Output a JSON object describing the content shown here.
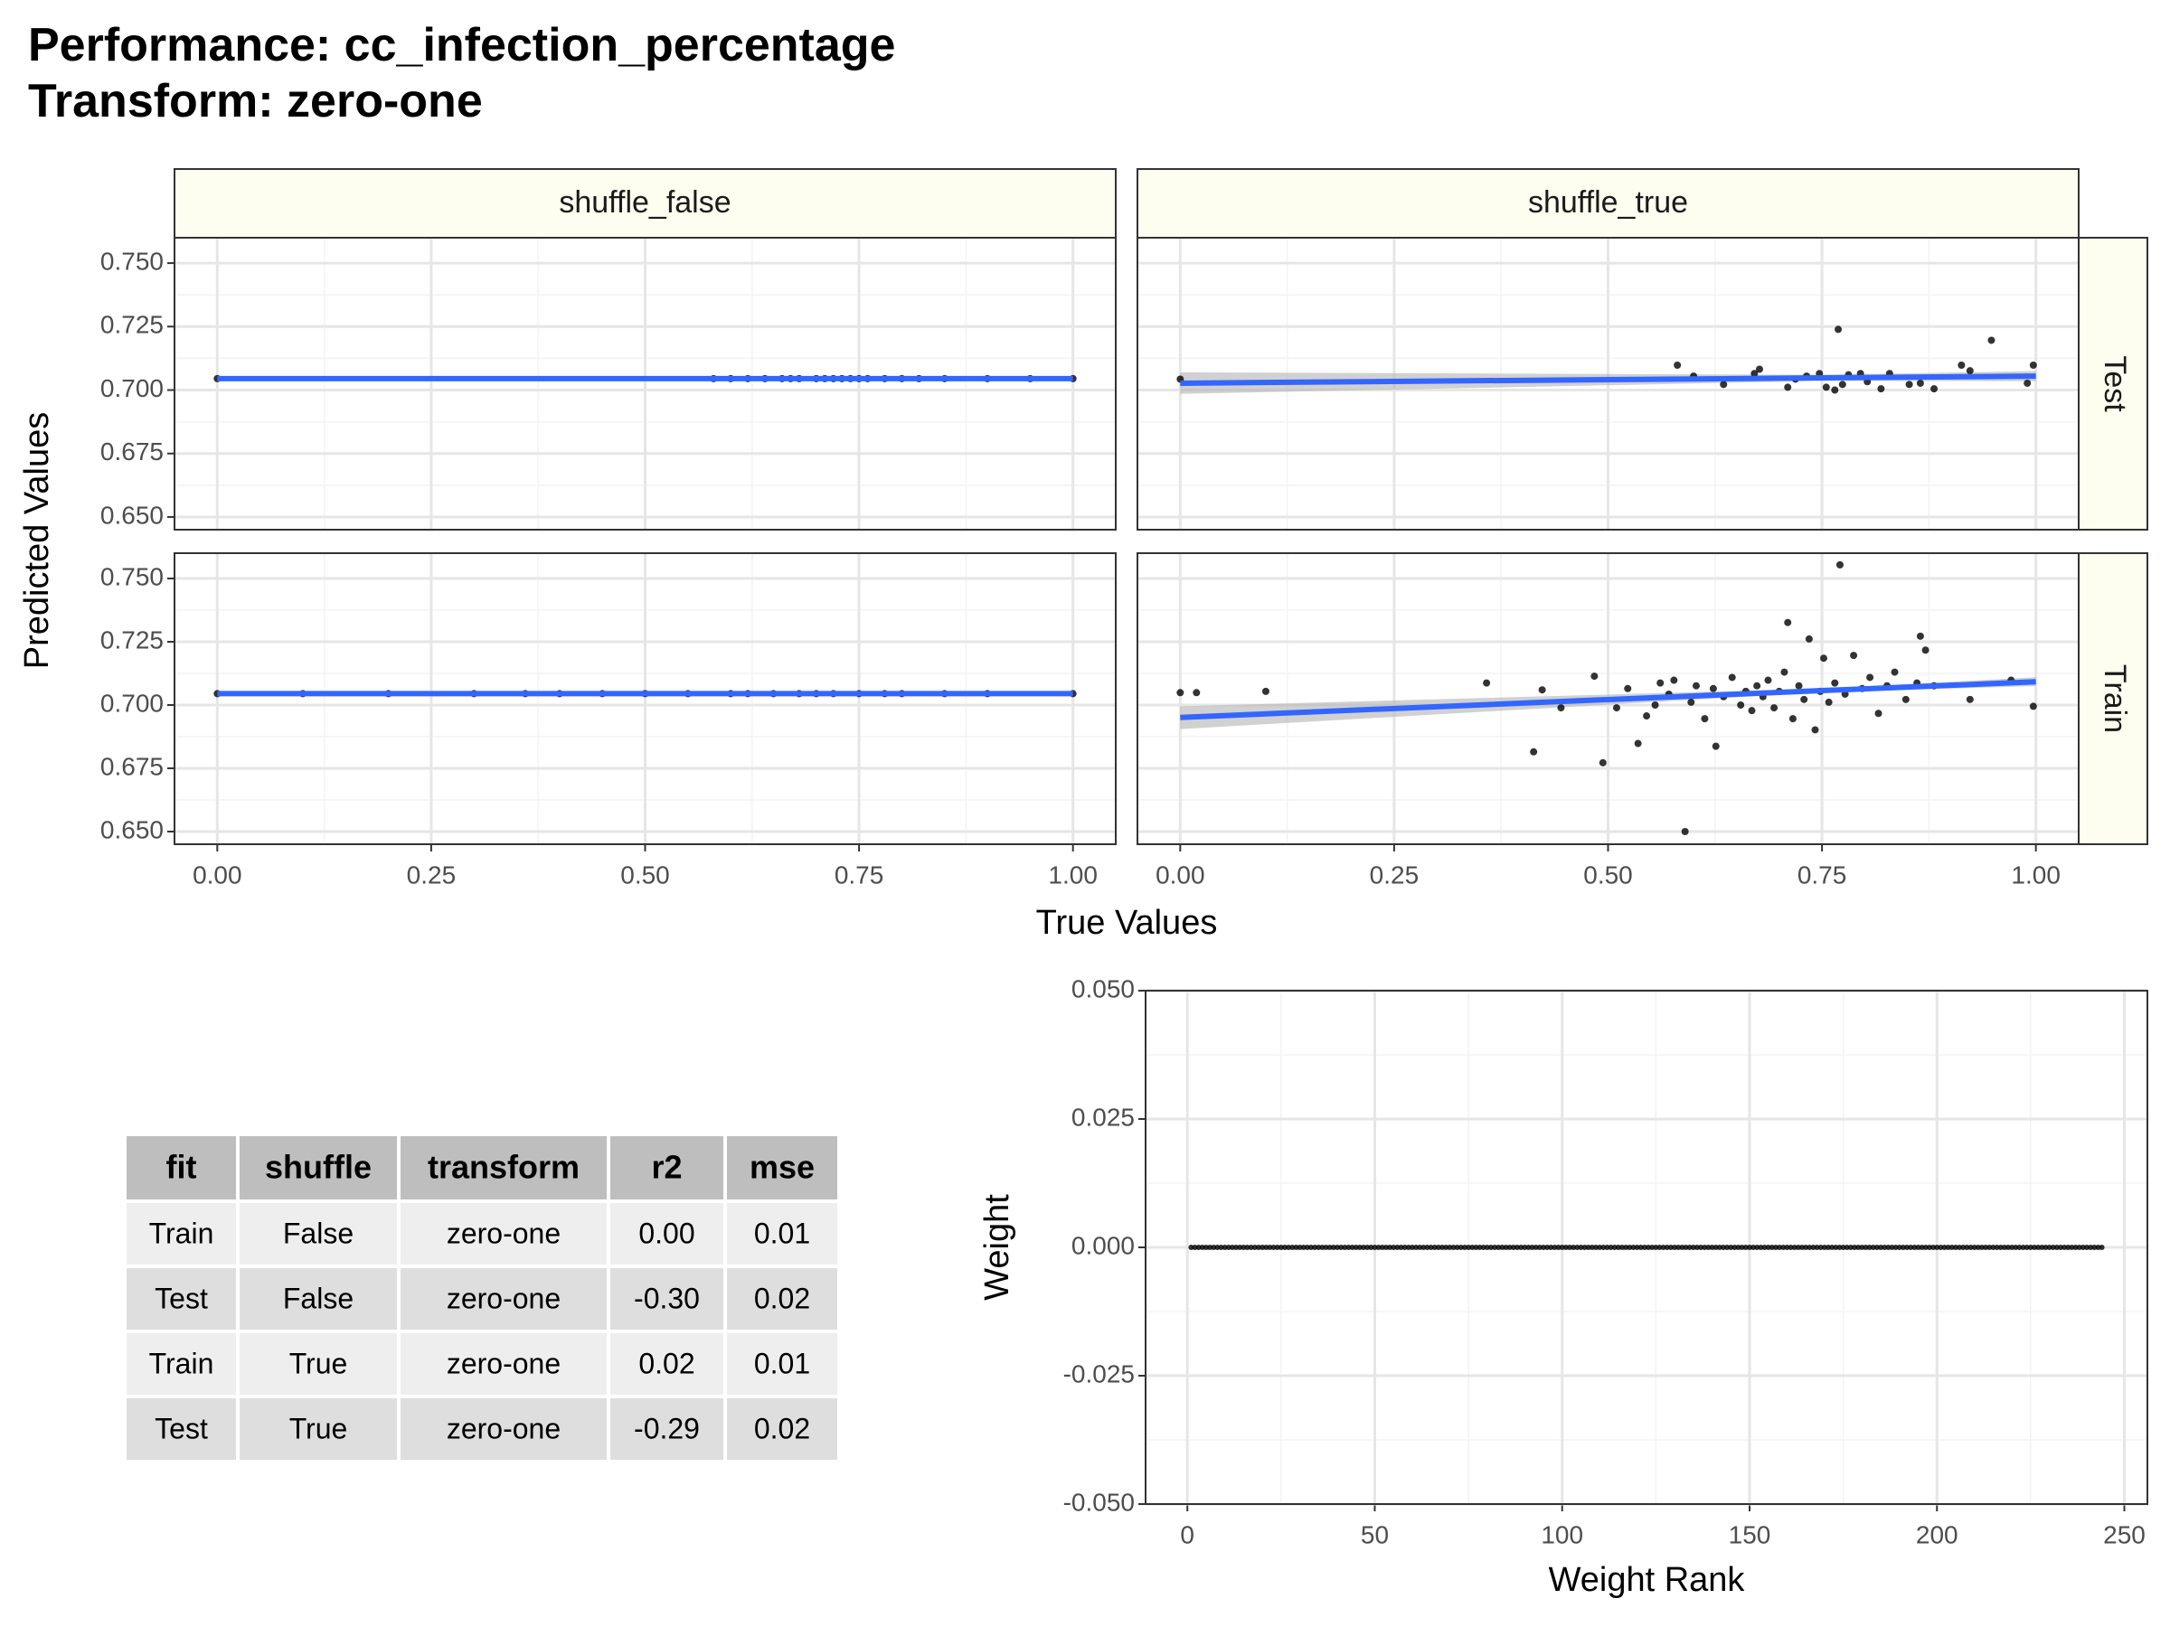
{
  "header": {
    "title": "Performance: cc_infection_percentage",
    "subtitle": "Transform: zero-one"
  },
  "chart_data": [
    {
      "type": "facet_scatter",
      "xlabel": "True Values",
      "ylabel": "Predicted Values",
      "facet_cols": [
        "shuffle_false",
        "shuffle_true"
      ],
      "facet_rows": [
        "Test",
        "Train"
      ],
      "xlim": [
        -0.05,
        1.05
      ],
      "ylim": [
        0.645,
        0.76
      ],
      "xticks": [
        {
          "value": 0,
          "label": "0.00"
        },
        0.25,
        {
          "value": 0.5,
          "label": "0.50"
        },
        0.75,
        {
          "value": 1,
          "label": "1.00"
        }
      ],
      "yticks": [
        {
          "value": 0.65,
          "label": "0.650"
        },
        {
          "value": 0.675,
          "label": "0.675"
        },
        {
          "value": 0.7,
          "label": "0.700"
        },
        {
          "value": 0.725,
          "label": "0.725"
        },
        {
          "value": 0.75,
          "label": "0.750"
        }
      ],
      "x_minor_ticks": [
        0.125,
        0.375,
        0.625,
        0.875
      ],
      "y_minor_ticks": [
        0.6625,
        0.6875,
        0.7125,
        0.7375
      ],
      "point_color": "#000000",
      "fit_color": "#3366ff",
      "band_color": "#b3b3b3",
      "strip_fill": "#fdfeef",
      "grid": true,
      "panels": [
        [
          {
            "x": [
              0,
              0.58,
              0.6,
              0.62,
              0.64,
              0.66,
              0.67,
              0.68,
              0.7,
              0.71,
              0.72,
              0.73,
              0.74,
              0.75,
              0.76,
              0.78,
              0.8,
              0.82,
              0.85,
              0.9,
              0.95,
              1.0
            ],
            "y": [
              0.7045,
              0.7045,
              0.7045,
              0.7045,
              0.7045,
              0.7045,
              0.7045,
              0.7045,
              0.7045,
              0.7045,
              0.7045,
              0.7045,
              0.7045,
              0.7045,
              0.7045,
              0.7045,
              0.7045,
              0.7045,
              0.7045,
              0.7045,
              0.7045,
              0.7045
            ],
            "fit": {
              "x": [
                0,
                0.75,
                1
              ],
              "y": [
                0.7045,
                0.7045,
                0.7045
              ],
              "lower": [
                0.7043,
                0.7044,
                0.7043
              ],
              "upper": [
                0.7047,
                0.7046,
                0.7047
              ]
            }
          },
          {
            "x": [
              0,
              0.581,
              0.6,
              0.635,
              0.671,
              0.677,
              0.71,
              0.719,
              0.732,
              0.747,
              0.755,
              0.765,
              0.769,
              0.774,
              0.781,
              0.795,
              0.803,
              0.819,
              0.829,
              0.852,
              0.865,
              0.881,
              0.913,
              0.923,
              0.948,
              0.99,
              0.997
            ],
            "y": [
              0.7043,
              0.7098,
              0.7055,
              0.7022,
              0.7065,
              0.7082,
              0.7011,
              0.7043,
              0.7055,
              0.7065,
              0.7011,
              0.7,
              0.7239,
              0.7022,
              0.706,
              0.7065,
              0.7033,
              0.7005,
              0.7065,
              0.7022,
              0.7027,
              0.7005,
              0.7098,
              0.7076,
              0.7196,
              0.7027,
              0.7098
            ],
            "fit": {
              "x": [
                0,
                0.75,
                1
              ],
              "y": [
                0.7027,
                0.7048,
                0.7055
              ],
              "lower": [
                0.6985,
                0.7036,
                0.7035
              ],
              "upper": [
                0.707,
                0.706,
                0.7075
              ]
            }
          }
        ],
        [
          {
            "x": [
              0,
              0.1,
              0.2,
              0.3,
              0.36,
              0.4,
              0.45,
              0.5,
              0.55,
              0.6,
              0.62,
              0.65,
              0.68,
              0.7,
              0.72,
              0.75,
              0.78,
              0.8,
              0.85,
              0.9,
              1.0
            ],
            "y": [
              0.7045,
              0.7045,
              0.7045,
              0.7045,
              0.7045,
              0.7045,
              0.7045,
              0.7045,
              0.7045,
              0.7045,
              0.7045,
              0.7045,
              0.7045,
              0.7045,
              0.7045,
              0.7045,
              0.7045,
              0.7045,
              0.7045,
              0.7045,
              0.7045
            ],
            "fit": {
              "x": [
                0,
                0.75,
                1
              ],
              "y": [
                0.7045,
                0.7045,
                0.7045
              ],
              "lower": [
                0.7043,
                0.7044,
                0.7043
              ],
              "upper": [
                0.7047,
                0.7046,
                0.7047
              ]
            }
          },
          {
            "x": [
              0,
              0.019,
              0.1,
              0.358,
              0.413,
              0.423,
              0.445,
              0.484,
              0.494,
              0.51,
              0.523,
              0.535,
              0.545,
              0.555,
              0.561,
              0.571,
              0.577,
              0.59,
              0.597,
              0.603,
              0.613,
              0.623,
              0.626,
              0.635,
              0.645,
              0.655,
              0.661,
              0.668,
              0.674,
              0.681,
              0.687,
              0.694,
              0.7,
              0.706,
              0.71,
              0.716,
              0.723,
              0.729,
              0.735,
              0.742,
              0.748,
              0.752,
              0.758,
              0.765,
              0.771,
              0.777,
              0.787,
              0.797,
              0.806,
              0.816,
              0.826,
              0.835,
              0.848,
              0.861,
              0.865,
              0.871,
              0.881,
              0.923,
              0.971,
              0.997
            ],
            "y": [
              0.7049,
              0.7049,
              0.7054,
              0.7087,
              0.6815,
              0.706,
              0.6989,
              0.7114,
              0.6772,
              0.6989,
              0.7065,
              0.6848,
              0.6957,
              0.7,
              0.7087,
              0.7043,
              0.7098,
              0.65,
              0.7011,
              0.7076,
              0.6946,
              0.7065,
              0.6837,
              0.7033,
              0.7109,
              0.7,
              0.7054,
              0.6978,
              0.7076,
              0.7033,
              0.7098,
              0.6989,
              0.7054,
              0.713,
              0.7326,
              0.6946,
              0.7076,
              0.7022,
              0.7261,
              0.6902,
              0.7054,
              0.7185,
              0.7011,
              0.7087,
              0.7554,
              0.7043,
              0.7196,
              0.7065,
              0.7109,
              0.6967,
              0.7076,
              0.713,
              0.7022,
              0.7087,
              0.7272,
              0.7217,
              0.7076,
              0.7022,
              0.7098,
              0.6995
            ],
            "fit": {
              "x": [
                0,
                0.75,
                1
              ],
              "y": [
                0.6951,
                0.7057,
                0.7092
              ],
              "lower": [
                0.6905,
                0.705,
                0.7075
              ],
              "upper": [
                0.6995,
                0.7065,
                0.711
              ]
            }
          }
        ]
      ]
    },
    {
      "type": "scatter",
      "xlabel": "Weight Rank",
      "ylabel": "Weight",
      "xlim": [
        -11.15,
        256.15
      ],
      "ylim": [
        -0.05,
        0.05
      ],
      "xticks": [
        0,
        50,
        100,
        150,
        200,
        250
      ],
      "yticks": [
        {
          "value": -0.05,
          "label": "-0.050"
        },
        {
          "value": -0.025,
          "label": "-0.025"
        },
        {
          "value": 0,
          "label": "0.000"
        },
        {
          "value": 0.025,
          "label": "0.025"
        },
        {
          "value": 0.05,
          "label": "0.050"
        }
      ],
      "x_minor_ticks": [
        25,
        75,
        125,
        175,
        225
      ],
      "y_minor_ticks": [
        -0.0375,
        -0.0125,
        0.0125,
        0.0375
      ],
      "point_color": "#000000",
      "grid": true,
      "x": [
        1,
        2,
        3,
        4,
        5,
        6,
        7,
        8,
        9,
        10,
        11,
        12,
        13,
        14,
        15,
        16,
        17,
        18,
        19,
        20,
        21,
        22,
        23,
        24,
        25,
        26,
        27,
        28,
        29,
        30,
        31,
        32,
        33,
        34,
        35,
        36,
        37,
        38,
        39,
        40,
        41,
        42,
        43,
        44,
        45,
        46,
        47,
        48,
        49,
        50,
        51,
        52,
        53,
        54,
        55,
        56,
        57,
        58,
        59,
        60,
        61,
        62,
        63,
        64,
        65,
        66,
        67,
        68,
        69,
        70,
        71,
        72,
        73,
        74,
        75,
        76,
        77,
        78,
        79,
        80,
        81,
        82,
        83,
        84,
        85,
        86,
        87,
        88,
        89,
        90,
        91,
        92,
        93,
        94,
        95,
        96,
        97,
        98,
        99,
        100,
        101,
        102,
        103,
        104,
        105,
        106,
        107,
        108,
        109,
        110,
        111,
        112,
        113,
        114,
        115,
        116,
        117,
        118,
        119,
        120,
        121,
        122,
        123,
        124,
        125,
        126,
        127,
        128,
        129,
        130,
        131,
        132,
        133,
        134,
        135,
        136,
        137,
        138,
        139,
        140,
        141,
        142,
        143,
        144,
        145,
        146,
        147,
        148,
        149,
        150,
        151,
        152,
        153,
        154,
        155,
        156,
        157,
        158,
        159,
        160,
        161,
        162,
        163,
        164,
        165,
        166,
        167,
        168,
        169,
        170,
        171,
        172,
        173,
        174,
        175,
        176,
        177,
        178,
        179,
        180,
        181,
        182,
        183,
        184,
        185,
        186,
        187,
        188,
        189,
        190,
        191,
        192,
        193,
        194,
        195,
        196,
        197,
        198,
        199,
        200,
        201,
        202,
        203,
        204,
        205,
        206,
        207,
        208,
        209,
        210,
        211,
        212,
        213,
        214,
        215,
        216,
        217,
        218,
        219,
        220,
        221,
        222,
        223,
        224,
        225,
        226,
        227,
        228,
        229,
        230,
        231,
        232,
        233,
        234,
        235,
        236,
        237,
        238,
        239,
        240,
        241,
        242,
        243,
        244
      ],
      "values": [
        0,
        0,
        0,
        0,
        0,
        0,
        0,
        0,
        0,
        0,
        0,
        0,
        0,
        0,
        0,
        0,
        0,
        0,
        0,
        0,
        0,
        0,
        0,
        0,
        0,
        0,
        0,
        0,
        0,
        0,
        0,
        0,
        0,
        0,
        0,
        0,
        0,
        0,
        0,
        0,
        0,
        0,
        0,
        0,
        0,
        0,
        0,
        0,
        0,
        0,
        0,
        0,
        0,
        0,
        0,
        0,
        0,
        0,
        0,
        0,
        0,
        0,
        0,
        0,
        0,
        0,
        0,
        0,
        0,
        0,
        0,
        0,
        0,
        0,
        0,
        0,
        0,
        0,
        0,
        0,
        0,
        0,
        0,
        0,
        0,
        0,
        0,
        0,
        0,
        0,
        0,
        0,
        0,
        0,
        0,
        0,
        0,
        0,
        0,
        0,
        0,
        0,
        0,
        0,
        0,
        0,
        0,
        0,
        0,
        0,
        0,
        0,
        0,
        0,
        0,
        0,
        0,
        0,
        0,
        0,
        0,
        0,
        0,
        0,
        0,
        0,
        0,
        0,
        0,
        0,
        0,
        0,
        0,
        0,
        0,
        0,
        0,
        0,
        0,
        0,
        0,
        0,
        0,
        0,
        0,
        0,
        0,
        0,
        0,
        0,
        0,
        0,
        0,
        0,
        0,
        0,
        0,
        0,
        0,
        0,
        0,
        0,
        0,
        0,
        0,
        0,
        0,
        0,
        0,
        0,
        0,
        0,
        0,
        0,
        0,
        0,
        0,
        0,
        0,
        0,
        0,
        0,
        0,
        0,
        0,
        0,
        0,
        0,
        0,
        0,
        0,
        0,
        0,
        0,
        0,
        0,
        0,
        0,
        0,
        0,
        0,
        0,
        0,
        0,
        0,
        0,
        0,
        0,
        0,
        0,
        0,
        0,
        0,
        0,
        0,
        0,
        0,
        0,
        0,
        0,
        0,
        0,
        0,
        0,
        0,
        0,
        0,
        0,
        0,
        0,
        0,
        0,
        0,
        0,
        0,
        0,
        0,
        0,
        0,
        0,
        0,
        0,
        0,
        0
      ]
    }
  ],
  "table": {
    "columns": [
      "fit",
      "shuffle",
      "transform",
      "r2",
      "mse"
    ],
    "rows": [
      [
        "Train",
        "False",
        "zero-one",
        "0.00",
        "0.01"
      ],
      [
        "Test",
        "False",
        "zero-one",
        "-0.30",
        "0.02"
      ],
      [
        "Train",
        "True",
        "zero-one",
        "0.02",
        "0.01"
      ],
      [
        "Test",
        "True",
        "zero-one",
        "-0.29",
        "0.02"
      ]
    ]
  }
}
